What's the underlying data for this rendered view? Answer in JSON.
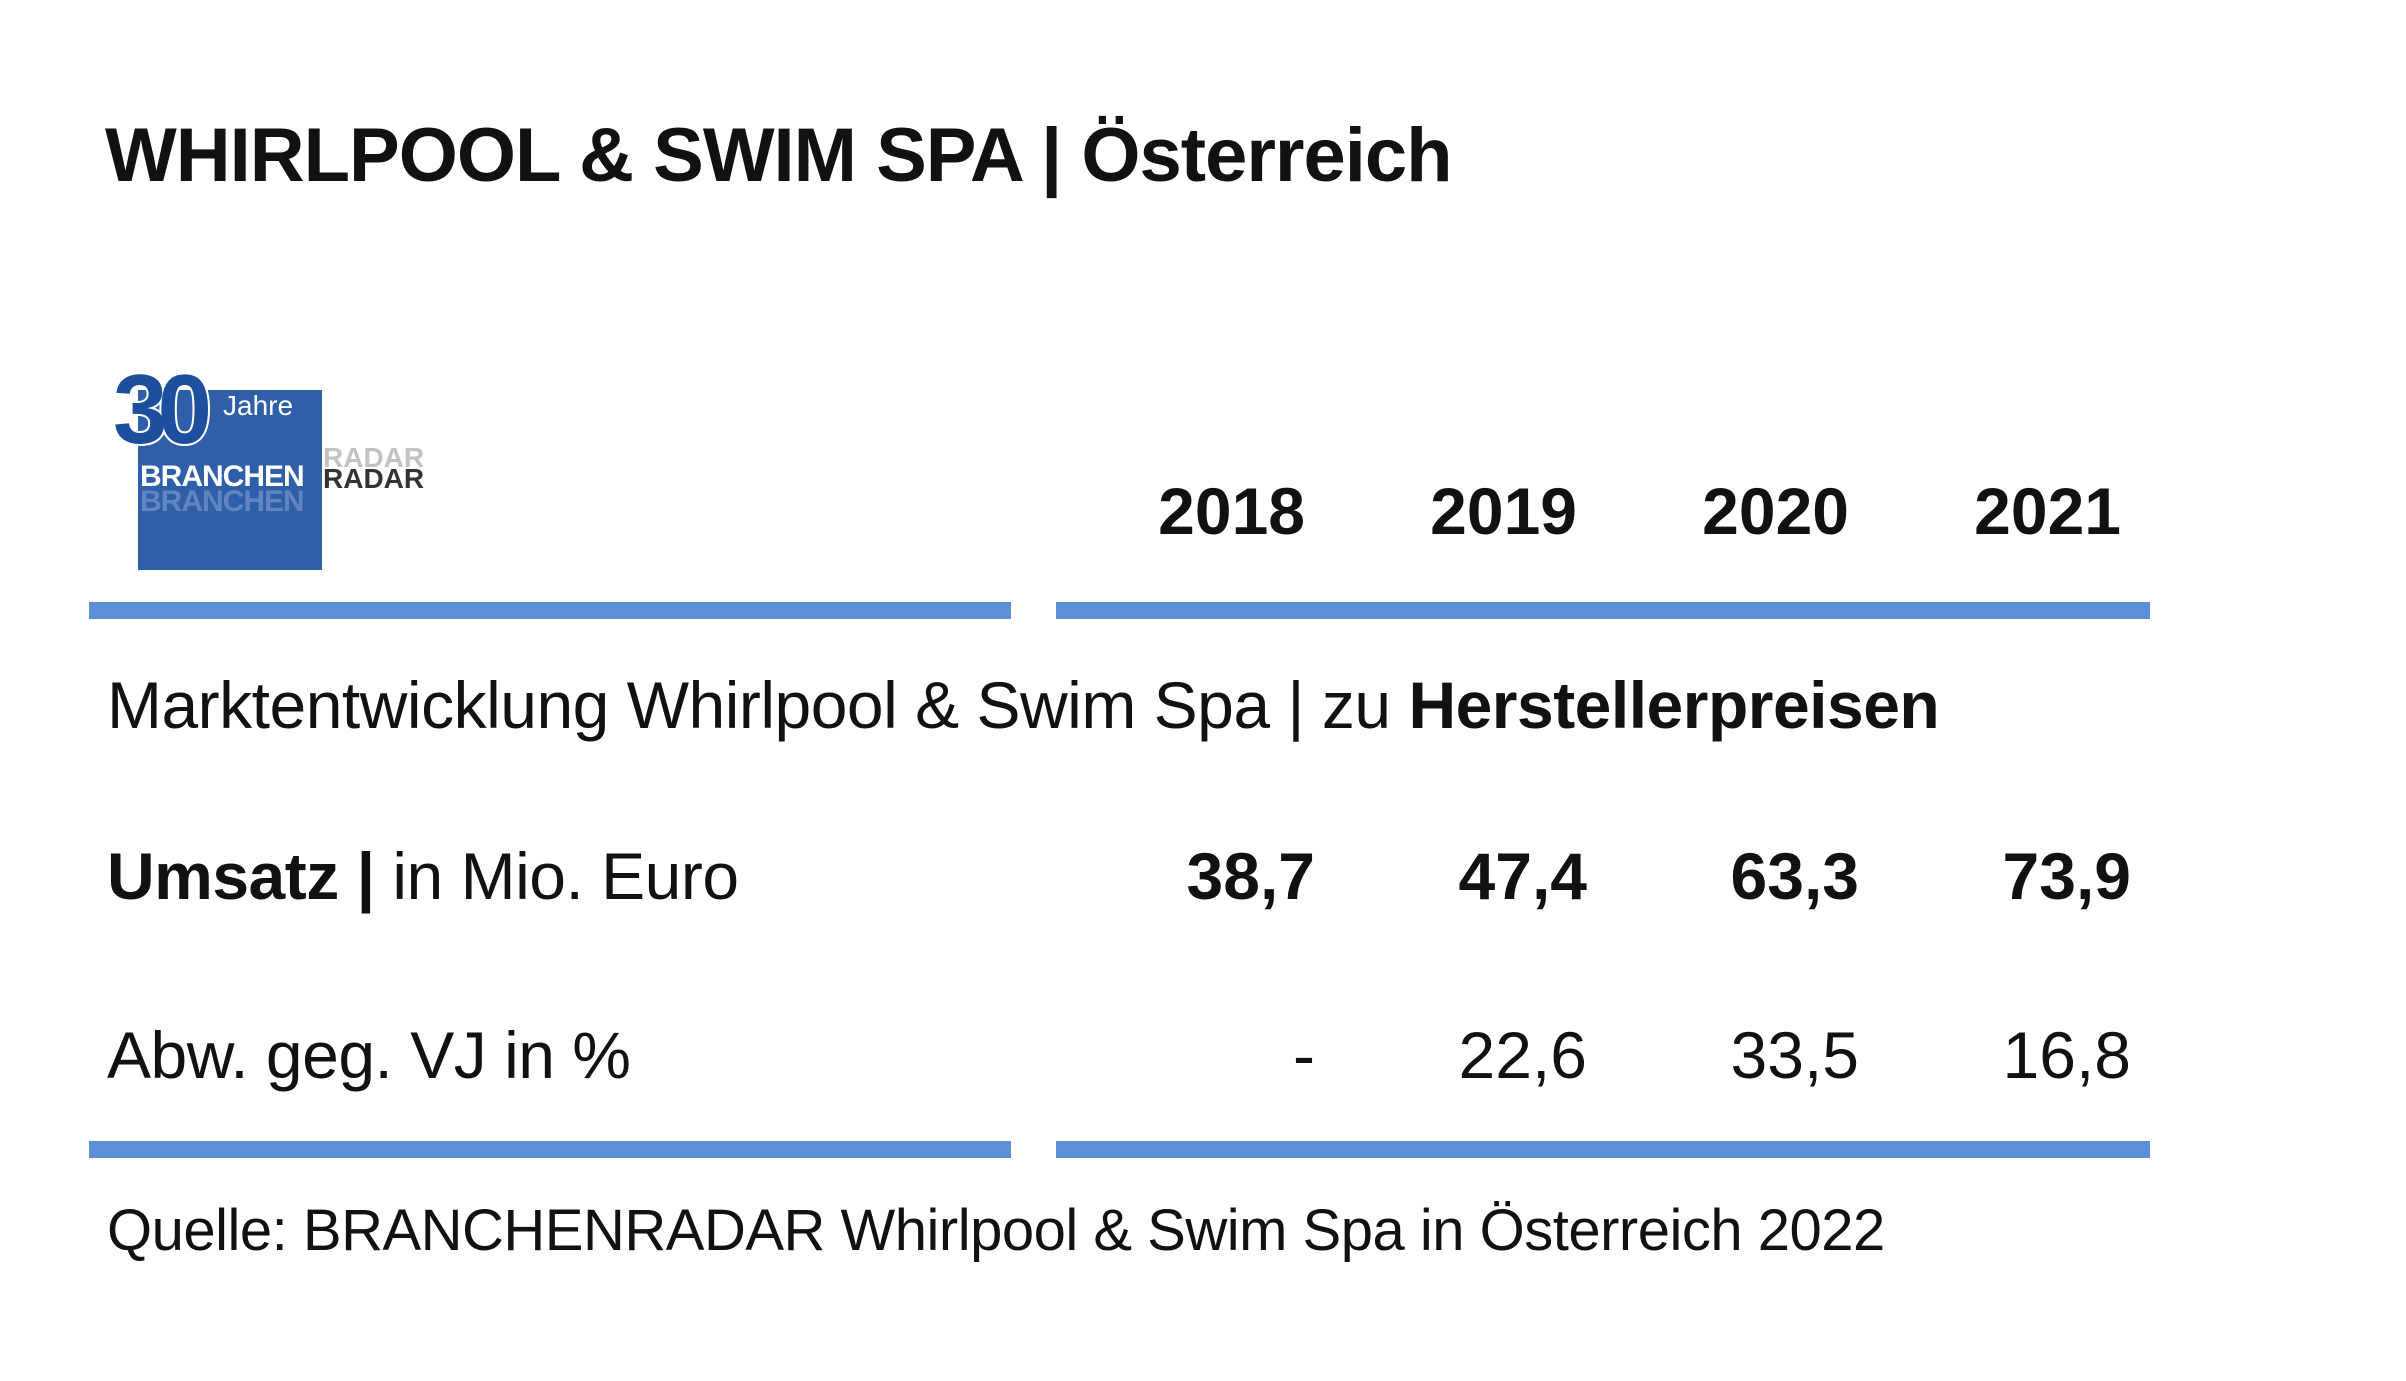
{
  "title": "WHIRLPOOL & SWIM SPA | Österreich",
  "logo": {
    "number": "30",
    "jahre": "Jahre",
    "branchen": "BRANCHEN",
    "radar": "RADAR"
  },
  "subtitle": {
    "regular": "Marktentwicklung Whirlpool & Swim Spa | zu ",
    "bold": "Herstellerpreisen"
  },
  "rows": [
    {
      "label_bold": "Umsatz |",
      "label_regular": " in Mio. Euro"
    },
    {
      "label_bold": "",
      "label_regular": "Abw. geg. VJ in %"
    }
  ],
  "source": "Quelle: BRANCHENRADAR Whirlpool & Swim Spa in Österreich 2022",
  "colors": {
    "rule": "#5b8fd6",
    "logo_blue": "#2f5fa8"
  },
  "chart_data": {
    "type": "table",
    "columns": [
      "2018",
      "2019",
      "2020",
      "2021"
    ],
    "rows": [
      {
        "name": "Umsatz | in Mio. Euro",
        "values": [
          "38,7",
          "47,4",
          "63,3",
          "73,9"
        ]
      },
      {
        "name": "Abw. geg. VJ in %",
        "values": [
          "-",
          "22,6",
          "33,5",
          "16,8"
        ]
      }
    ],
    "title": "WHIRLPOOL & SWIM SPA | Österreich"
  }
}
